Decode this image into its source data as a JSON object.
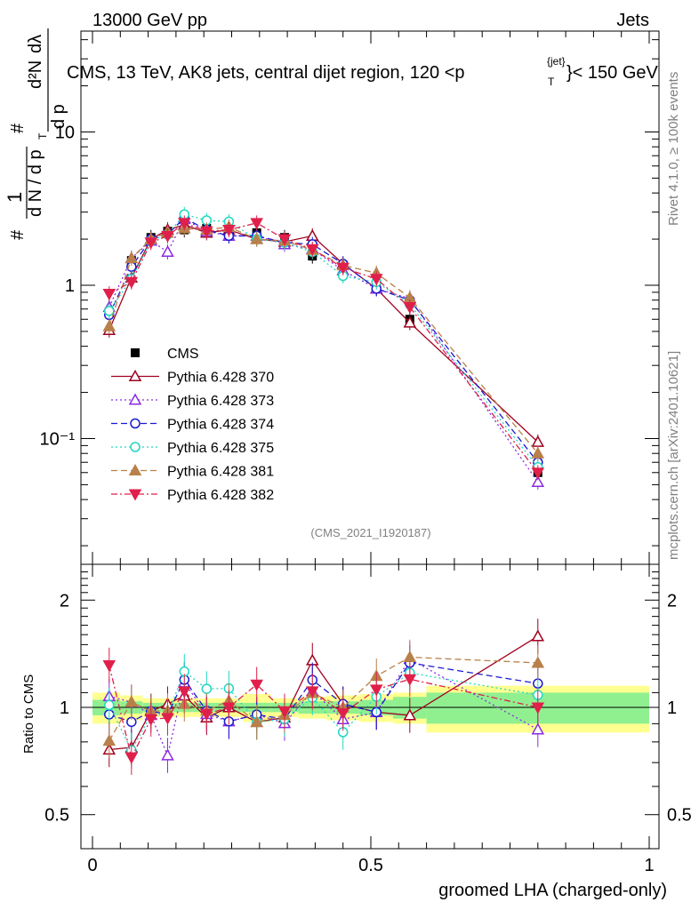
{
  "header": {
    "energy_label": "13000 GeV pp",
    "category_label": "Jets",
    "title": "CMS, 13 TeV, AK8 jets, central dijet region, 120 <",
    "title_p": "p",
    "title_sup": "{jet}",
    "title_sub": "T",
    "title_tail": "}< 150 GeV",
    "rivet_label": "Rivet 4.1.0, ≥ 100k events",
    "source_label": "mcplots.cern.ch [arXiv:2401.10621]",
    "analysis_label": "(CMS_2021_I1920187)"
  },
  "y_axis_title": {
    "hash": "#",
    "one": "1",
    "dN_frac_den": "d N / d p",
    "T": "T",
    "hash2": "#",
    "dp_num": "d p",
    "d2N": "d²N",
    "dlambda": "dλ"
  },
  "main_ticks": {
    "y": [
      {
        "value": 0.1,
        "label": "10⁻¹"
      },
      {
        "value": 1,
        "label": "1"
      },
      {
        "value": 10,
        "label": "10"
      }
    ]
  },
  "ratio_panel": {
    "ylabel": "Ratio to CMS",
    "ticks": [
      {
        "value": 0.5,
        "label": "0.5"
      },
      {
        "value": 1,
        "label": "1"
      },
      {
        "value": 2,
        "label": "2"
      }
    ]
  },
  "x_axis": {
    "label": "groomed LHA (charged-only)",
    "ticks": [
      {
        "value": 0,
        "label": "0"
      },
      {
        "value": 0.5,
        "label": "0.5"
      },
      {
        "value": 1,
        "label": "1"
      }
    ]
  },
  "colors": {
    "band_green": "#90f090",
    "band_yellow": "#ffff90",
    "cms": "#000000",
    "p370": "#a00020",
    "p373": "#8a2be2",
    "p374": "#1a1ad0",
    "p375": "#20d8c0",
    "p381": "#b8804a",
    "p382": "#e0204a"
  },
  "legend": [
    {
      "key": "cms",
      "label": "CMS"
    },
    {
      "key": "p370",
      "label": "Pythia 6.428 370"
    },
    {
      "key": "p373",
      "label": "Pythia 6.428 373"
    },
    {
      "key": "p374",
      "label": "Pythia 6.428 374"
    },
    {
      "key": "p375",
      "label": "Pythia 6.428 375"
    },
    {
      "key": "p381",
      "label": "Pythia 6.428 381"
    },
    {
      "key": "p382",
      "label": "Pythia 6.428 382"
    }
  ],
  "chart_data": {
    "type": "scatter",
    "title": "CMS, 13 TeV, AK8 jets, central dijet region, 120 < p_T^{jet} < 150 GeV",
    "xlabel": "groomed LHA (charged-only)",
    "ylabel": "1/(dN/dp_T) d²N/(dp_T dλ)",
    "xlim": [
      0,
      1
    ],
    "ylim_main": [
      0.02,
      50
    ],
    "yscale_main": "log",
    "ylim_ratio": [
      0.4,
      2.4
    ],
    "yscale_ratio": "log",
    "x": [
      0.03,
      0.07,
      0.105,
      0.135,
      0.165,
      0.205,
      0.245,
      0.295,
      0.345,
      0.395,
      0.45,
      0.51,
      0.57,
      0.8
    ],
    "x_edges": [
      0.0,
      0.05,
      0.09,
      0.12,
      0.15,
      0.18,
      0.23,
      0.27,
      0.32,
      0.37,
      0.42,
      0.48,
      0.54,
      0.6,
      1.0
    ],
    "band_rel_stat": [
      0.05,
      0.04,
      0.03,
      0.03,
      0.03,
      0.03,
      0.03,
      0.03,
      0.03,
      0.04,
      0.04,
      0.05,
      0.07,
      0.1
    ],
    "band_rel_total": [
      0.1,
      0.08,
      0.06,
      0.06,
      0.06,
      0.06,
      0.06,
      0.09,
      0.06,
      0.07,
      0.08,
      0.09,
      0.1,
      0.15
    ],
    "series": [
      {
        "key": "cms",
        "name": "CMS",
        "marker": "square-filled",
        "line": "none",
        "values": [
          0.67,
          1.45,
          2.05,
          2.25,
          2.3,
          2.35,
          2.3,
          2.2,
          2.05,
          1.55,
          1.35,
          0.98,
          0.6,
          0.06
        ]
      },
      {
        "key": "p370",
        "name": "Pythia 6.428 370",
        "marker": "triangle-open",
        "line": "solid",
        "values": [
          0.51,
          1.12,
          2.0,
          2.3,
          2.48,
          2.2,
          2.3,
          2.0,
          1.92,
          2.1,
          1.38,
          0.95,
          0.57,
          0.095
        ]
      },
      {
        "key": "p373",
        "name": "Pythia 6.428 373",
        "marker": "triangle-open",
        "line": "dotted",
        "values": [
          0.72,
          1.5,
          1.95,
          1.65,
          2.7,
          2.25,
          2.1,
          2.1,
          1.85,
          1.72,
          1.25,
          0.95,
          0.82,
          0.052
        ]
      },
      {
        "key": "p374",
        "name": "Pythia 6.428 374",
        "marker": "circle-open",
        "line": "dashed",
        "values": [
          0.64,
          1.32,
          2.0,
          2.15,
          2.75,
          2.3,
          2.1,
          2.1,
          1.9,
          1.85,
          1.38,
          0.95,
          0.8,
          0.07
        ]
      },
      {
        "key": "p375",
        "name": "Pythia 6.428 375",
        "marker": "circle-open",
        "line": "dotted",
        "values": [
          0.68,
          1.1,
          1.95,
          2.15,
          2.9,
          2.65,
          2.6,
          2.0,
          1.9,
          1.65,
          1.15,
          1.05,
          0.75,
          0.065
        ]
      },
      {
        "key": "p381",
        "name": "Pythia 6.428 381",
        "marker": "triangle-filled",
        "line": "dashed",
        "values": [
          0.54,
          1.5,
          2.0,
          2.2,
          2.35,
          2.3,
          2.4,
          2.0,
          1.95,
          1.7,
          1.35,
          1.2,
          0.83,
          0.08
        ]
      },
      {
        "key": "p382",
        "name": "Pythia 6.428 382",
        "marker": "triangle-down-filled",
        "line": "dashdot",
        "values": [
          0.88,
          1.05,
          1.9,
          2.1,
          2.55,
          2.25,
          2.3,
          2.55,
          2.0,
          1.72,
          1.3,
          1.1,
          0.72,
          0.06
        ]
      }
    ]
  }
}
